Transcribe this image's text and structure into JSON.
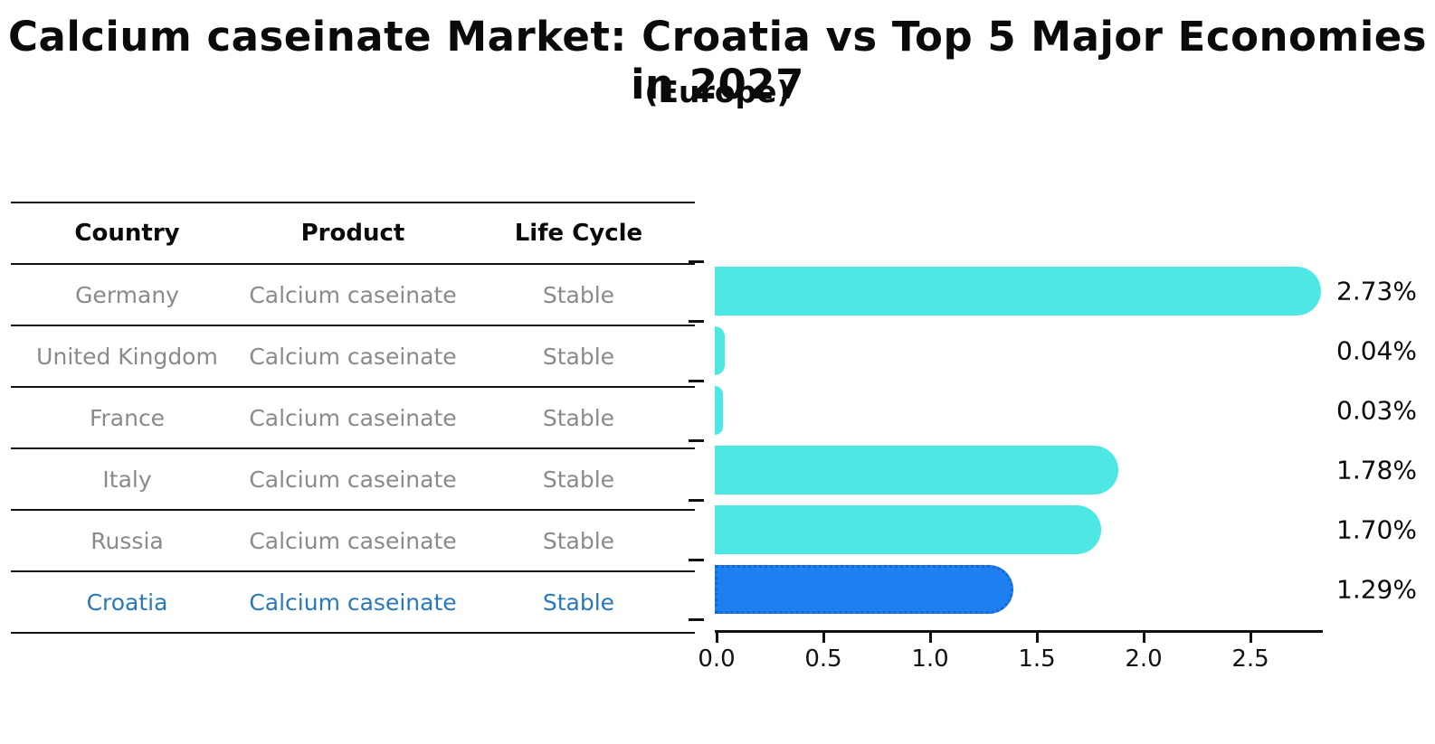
{
  "title": "Calcium caseinate Market: Croatia vs Top 5 Major Economies in 2027",
  "subtitle": "(Europe)",
  "table": {
    "headers": [
      "Country",
      "Product",
      "Life Cycle"
    ],
    "rows": [
      {
        "country": "Germany",
        "product": "Calcium caseinate",
        "life_cycle": "Stable",
        "highlighted": false
      },
      {
        "country": "United Kingdom",
        "product": "Calcium caseinate",
        "life_cycle": "Stable",
        "highlighted": false
      },
      {
        "country": "France",
        "product": "Calcium caseinate",
        "life_cycle": "Stable",
        "highlighted": false
      },
      {
        "country": "Italy",
        "product": "Calcium caseinate",
        "life_cycle": "Stable",
        "highlighted": false
      },
      {
        "country": "Russia",
        "product": "Calcium caseinate",
        "life_cycle": "Stable",
        "highlighted": false
      },
      {
        "country": "Croatia",
        "product": "Calcium caseinate",
        "life_cycle": "Stable",
        "highlighted": true
      }
    ]
  },
  "chart_data": {
    "type": "bar",
    "orientation": "horizontal",
    "title": "Calcium caseinate Market: Croatia vs Top 5 Major Economies in 2027 (Europe)",
    "categories": [
      "Germany",
      "United Kingdom",
      "France",
      "Italy",
      "Russia",
      "Croatia"
    ],
    "values": [
      2.73,
      0.04,
      0.03,
      1.78,
      1.7,
      1.29
    ],
    "value_labels": [
      "2.73%",
      "0.04%",
      "0.03%",
      "1.78%",
      "1.70%",
      "1.29%"
    ],
    "x_ticks": [
      0.0,
      0.5,
      1.0,
      1.5,
      2.0,
      2.5
    ],
    "x_tick_labels": [
      "0.0",
      "0.5",
      "1.0",
      "1.5",
      "2.0",
      "2.5"
    ],
    "xlim": [
      0,
      2.85
    ],
    "grid": false,
    "legend": null,
    "highlight_index": 5
  },
  "colors": {
    "background": "#FFFFFF",
    "bar": "#4DE8E4",
    "highlight_bar": "#1E80F0",
    "highlight_bar_border": "#1566D8",
    "highlight_text": "#2878BE",
    "table_text": "#8A8A8A",
    "line": "#111111",
    "text": "#0A0A0A"
  }
}
